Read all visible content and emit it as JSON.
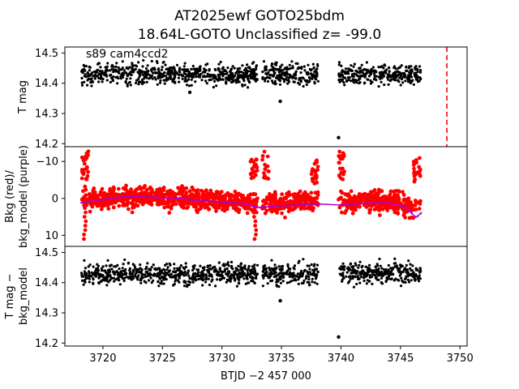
{
  "title_line1": "AT2025ewf  GOTO25bdm",
  "title_line2": "18.64L-GOTO Unclassified z= -99.0",
  "chart_data": [
    {
      "type": "scatter",
      "panel": "top",
      "ylabel": "T mag",
      "annotation": "s89 cam4ccd2",
      "ylim": [
        14.52,
        14.19
      ],
      "y_inverted": true,
      "yticks": [
        "14.2",
        "14.3",
        "14.4",
        "14.5"
      ],
      "color": "#000000",
      "band": {
        "center": 14.43,
        "halfwidth": 0.055
      },
      "segments": [
        [
          3718.2,
          3733.0
        ],
        [
          3733.4,
          3738.1
        ],
        [
          3739.8,
          3746.7
        ]
      ],
      "outliers": [
        {
          "x": 3739.8,
          "y": 14.22
        },
        {
          "x": 3734.9,
          "y": 14.34
        },
        {
          "x": 3727.3,
          "y": 14.37
        }
      ],
      "vline": {
        "x": 3748.9,
        "color": "#ff0000",
        "style": "dashed"
      }
    },
    {
      "type": "scatter",
      "panel": "middle",
      "ylabel": [
        "Bkg (red)/",
        "bkg_model (purple)"
      ],
      "ylim": [
        -14,
        13
      ],
      "yticks": [
        "10",
        "0",
        "−10"
      ],
      "series": [
        {
          "name": "Bkg",
          "color": "#ff0000",
          "segments": [
            [
              3718.2,
              3733.0
            ],
            [
              3733.4,
              3738.1
            ],
            [
              3739.8,
              3746.7
            ]
          ]
        },
        {
          "name": "bkg_model",
          "color": "#aa00cc",
          "x": [
            3718.2,
            3720,
            3722,
            3724,
            3726,
            3728,
            3730,
            3732,
            3733,
            3735,
            3738,
            3740,
            3742,
            3744,
            3745.5,
            3746.3,
            3746.8
          ],
          "y": [
            1.2,
            0.3,
            -0.6,
            -0.3,
            -0.1,
            0.6,
            1.0,
            1.5,
            2.5,
            2.0,
            1.5,
            1.8,
            1.3,
            1.2,
            2.5,
            5.2,
            3.8
          ]
        }
      ],
      "spikes": [
        {
          "x": 3718.5,
          "y": 11
        },
        {
          "x": 3732.8,
          "y": 11
        }
      ]
    },
    {
      "type": "scatter",
      "panel": "bottom",
      "ylabel": [
        "T mag −",
        "bkg_model"
      ],
      "xlabel": "BTJD −2 457 000",
      "xlim": [
        3716.8,
        3750.6
      ],
      "xticks": [
        "3720",
        "3725",
        "3730",
        "3735",
        "3740",
        "3745",
        "3750"
      ],
      "ylim": [
        14.52,
        14.19
      ],
      "y_inverted": true,
      "yticks": [
        "14.2",
        "14.3",
        "14.4",
        "14.5"
      ],
      "color": "#000000",
      "band": {
        "center": 14.43,
        "halfwidth": 0.055
      },
      "segments": [
        [
          3718.2,
          3733.0
        ],
        [
          3733.4,
          3738.1
        ],
        [
          3739.8,
          3746.7
        ]
      ],
      "outliers": [
        {
          "x": 3739.8,
          "y": 14.22
        },
        {
          "x": 3734.9,
          "y": 14.34
        }
      ]
    }
  ]
}
